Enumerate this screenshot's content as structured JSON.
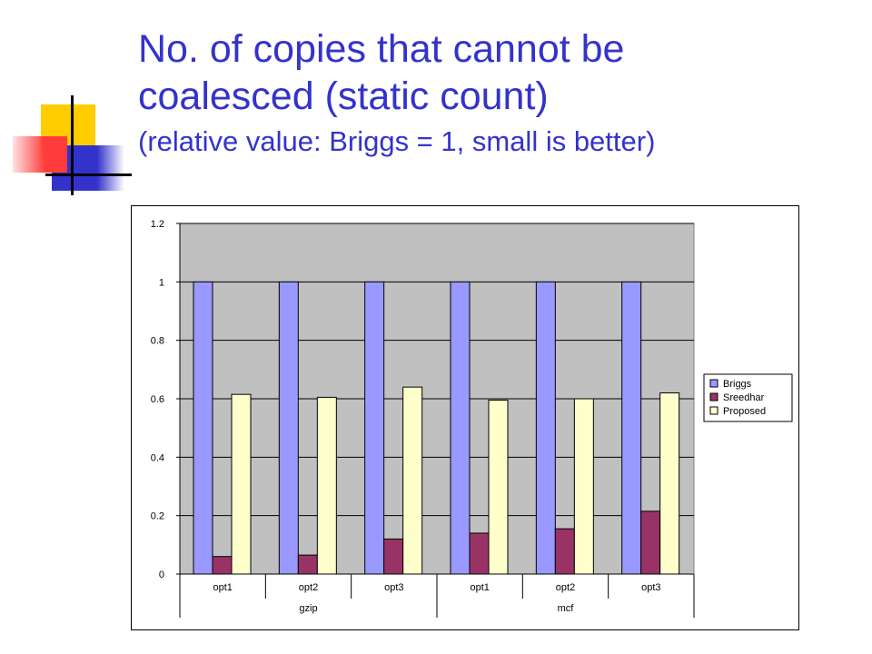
{
  "slide": {
    "title_line1": "No. of copies that cannot be",
    "title_line2": "coalesced (static count)",
    "title_line3": "(relative value: Briggs = 1, small is better)"
  },
  "chart_data": {
    "type": "bar",
    "categories": [
      "opt1",
      "opt2",
      "opt3",
      "opt1",
      "opt2",
      "opt3"
    ],
    "groups": [
      {
        "label": "gzip",
        "categories": [
          "opt1",
          "opt2",
          "opt3"
        ]
      },
      {
        "label": "mcf",
        "categories": [
          "opt1",
          "opt2",
          "opt3"
        ]
      }
    ],
    "series": [
      {
        "name": "Briggs",
        "color": "#9999ff",
        "values": [
          1,
          1,
          1,
          1,
          1,
          1
        ]
      },
      {
        "name": "Sreedhar",
        "color": "#993366",
        "values": [
          0.06,
          0.065,
          0.12,
          0.14,
          0.155,
          0.215
        ]
      },
      {
        "name": "Proposed",
        "color": "#ffffcc",
        "values": [
          0.615,
          0.605,
          0.64,
          0.595,
          0.6,
          0.62
        ]
      }
    ],
    "ylim": [
      0,
      1.2
    ],
    "yticks": [
      "0",
      "0.2",
      "0.4",
      "0.6",
      "0.8",
      "1",
      "1.2"
    ],
    "plot_background": "#c0c0c0",
    "grid": true,
    "legend": "right"
  }
}
